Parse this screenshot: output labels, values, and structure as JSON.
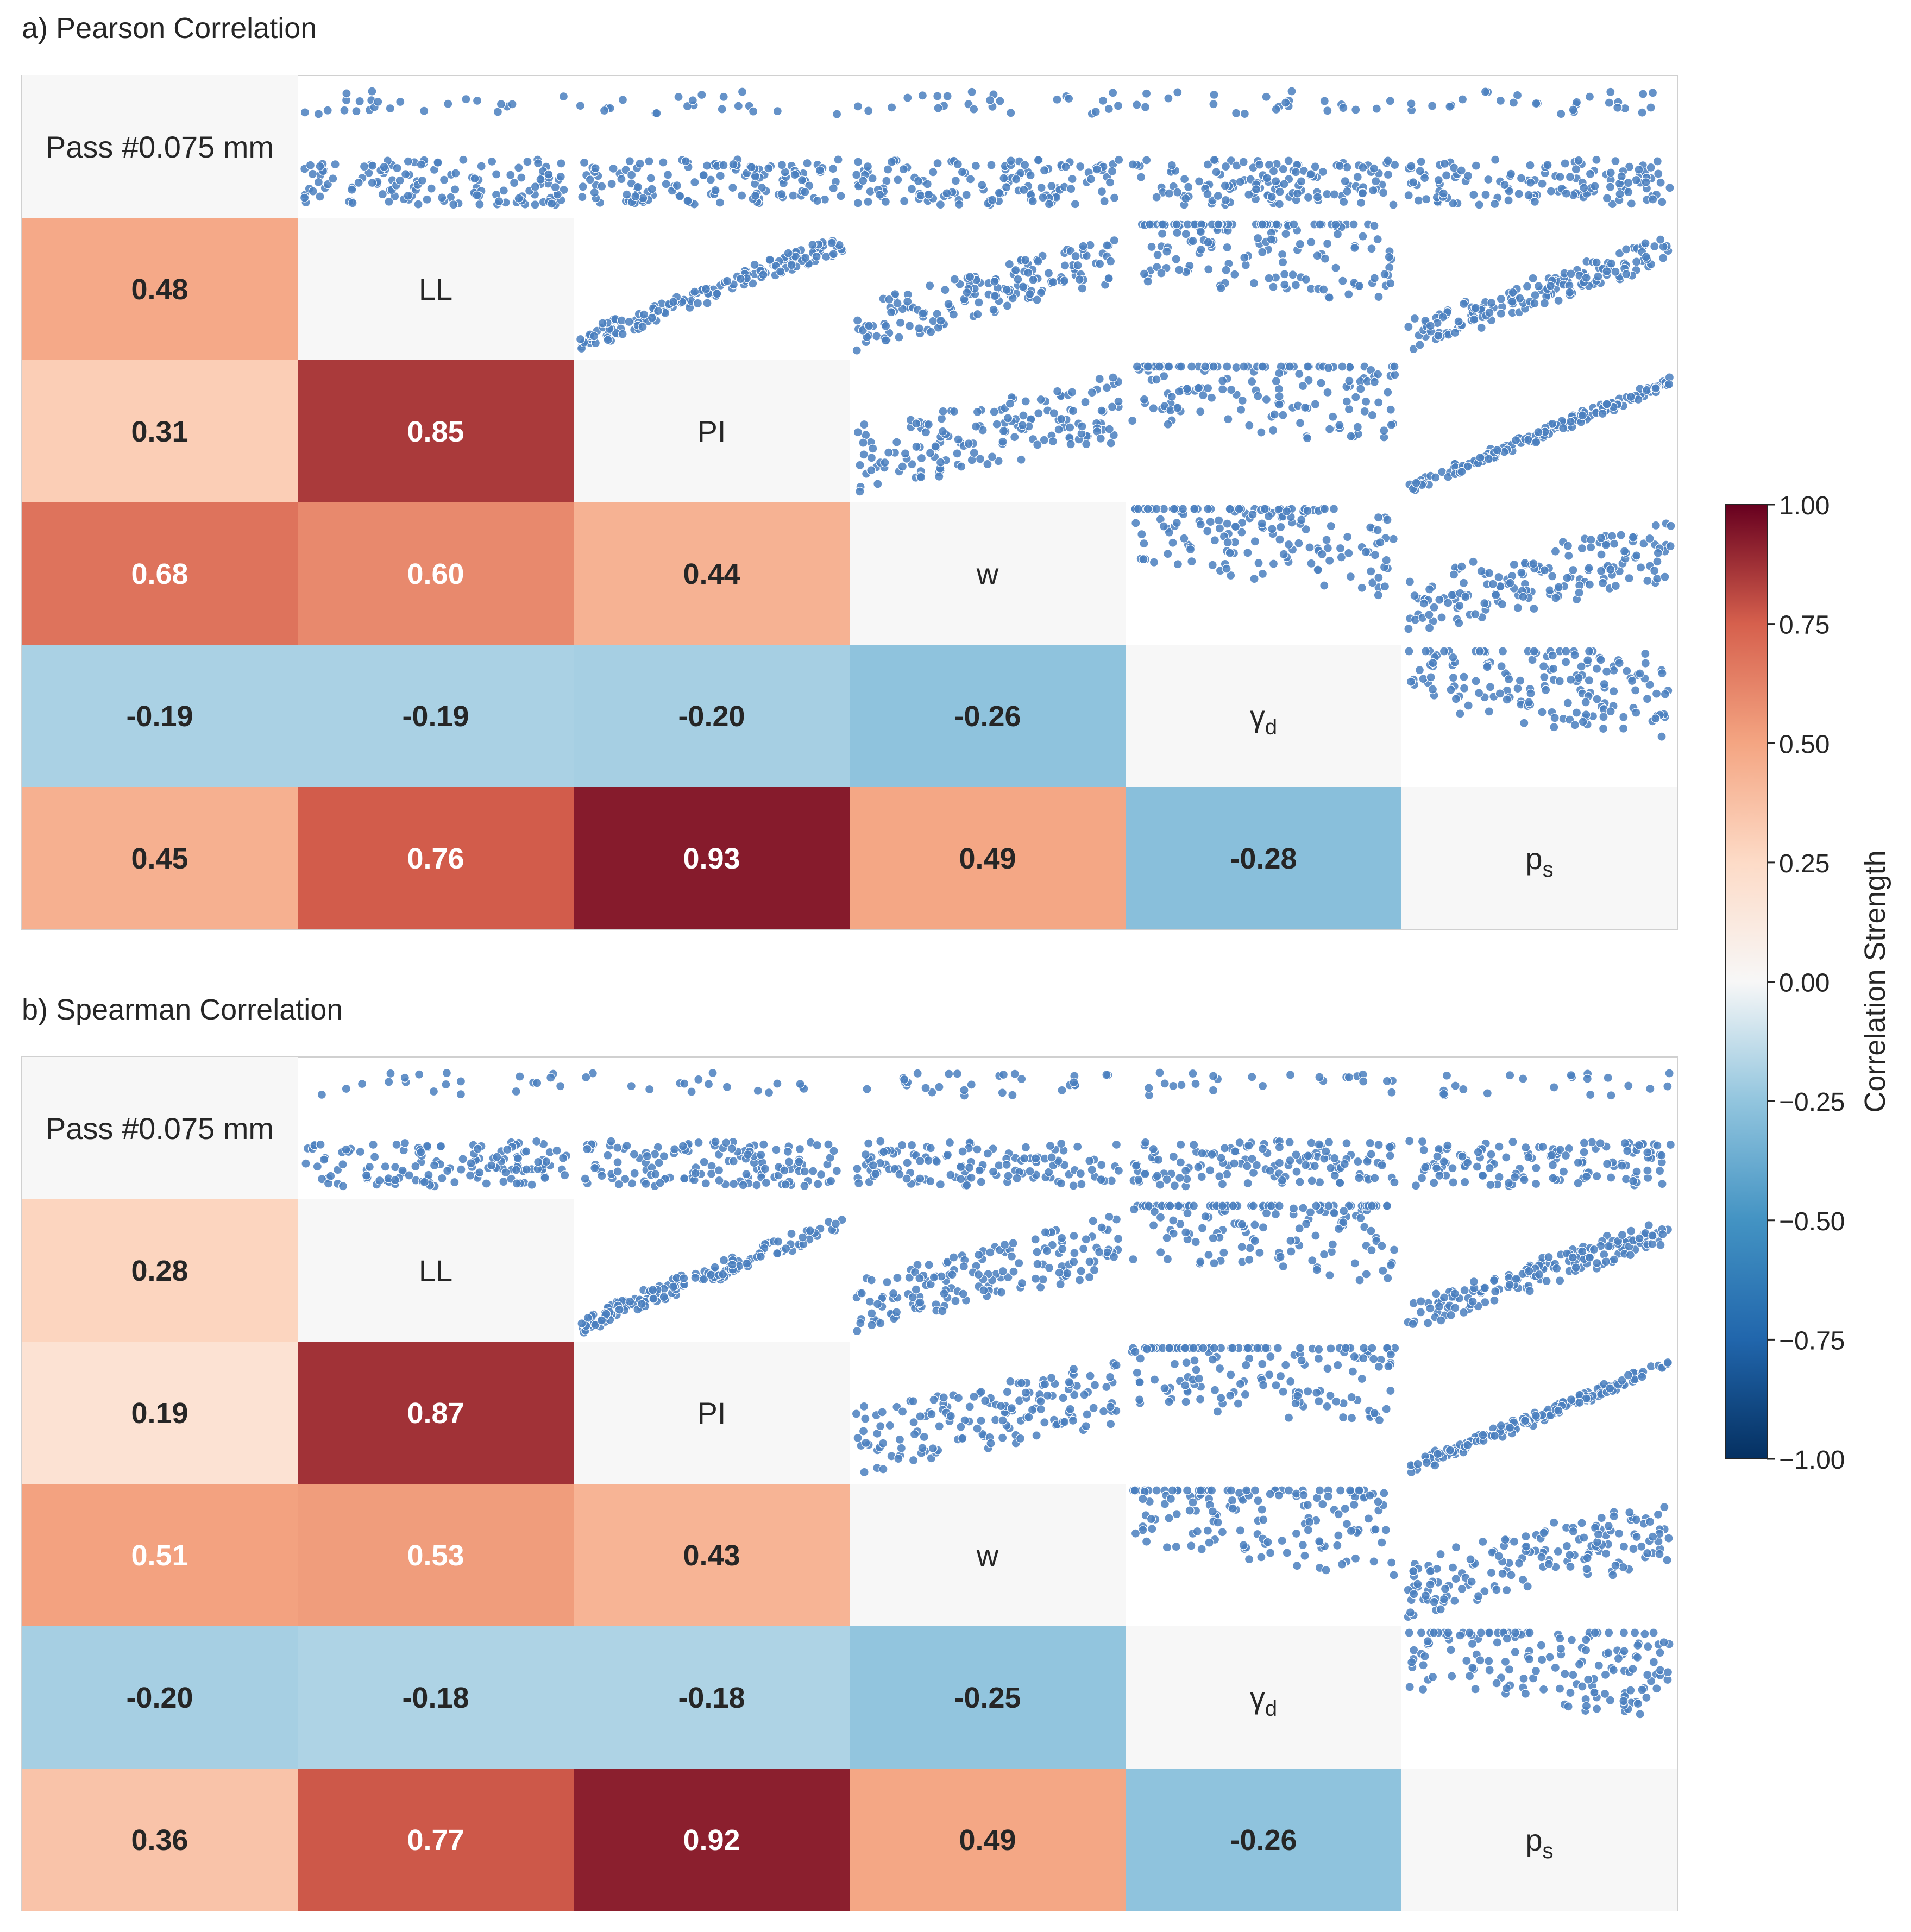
{
  "chart_data": [
    {
      "type": "heatmap",
      "panel": "a",
      "title": "a) Pearson Correlation",
      "variables": [
        "Pass #0.075 mm",
        "LL",
        "PI",
        "w",
        "γd",
        "ps"
      ],
      "lower_triangle": [
        [],
        [
          0.48
        ],
        [
          0.31,
          0.85
        ],
        [
          0.68,
          0.6,
          0.44
        ],
        [
          -0.19,
          -0.19,
          -0.2,
          -0.26
        ],
        [
          0.45,
          0.76,
          0.93,
          0.49,
          -0.28
        ]
      ],
      "upper_triangle": "pairwise scatter plots of the variables"
    },
    {
      "type": "heatmap",
      "panel": "b",
      "title": "b) Spearman Correlation",
      "variables": [
        "Pass #0.075 mm",
        "LL",
        "PI",
        "w",
        "γd",
        "ps"
      ],
      "lower_triangle": [
        [],
        [
          0.28
        ],
        [
          0.19,
          0.87
        ],
        [
          0.51,
          0.53,
          0.43
        ],
        [
          -0.2,
          -0.18,
          -0.18,
          -0.25
        ],
        [
          0.36,
          0.77,
          0.92,
          0.49,
          -0.26
        ]
      ],
      "upper_triangle": "pairwise scatter plots of the variables"
    }
  ],
  "colorbar": {
    "label": "Correlation Strength",
    "range": [
      -1.0,
      1.0
    ],
    "ticks": [
      "1.00",
      "0.75",
      "0.50",
      "0.25",
      "0.00",
      "−0.25",
      "−0.50",
      "−0.75",
      "−1.00"
    ],
    "colormap": "RdBu_r"
  },
  "labels": {
    "pass": "Pass #0.075 mm",
    "ll": "LL",
    "pi": "PI",
    "w": "w",
    "gd_main": "γ",
    "gd_sub": "d",
    "ps_main": "p",
    "ps_sub": "s"
  },
  "colors": {
    "diag_bg": "#f7f7f7",
    "scatter_point": "#4a7fbe",
    "scatter_edge": "#ffffff",
    "border": "#d0d0d0",
    "text_dark": "#262626",
    "text_light": "#ffffff"
  }
}
